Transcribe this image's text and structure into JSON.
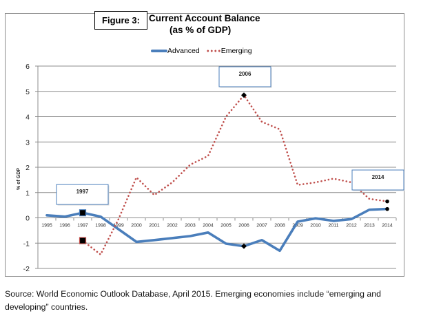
{
  "figure_label": "Figure 3:",
  "source_note": "Source: World Economic Outlook Database, April 2015. Emerging economies include “emerging and developing” countries.",
  "colors": {
    "advanced": "#4a7ebb",
    "emerging": "#c0504d",
    "gridline": "#8c8c8c",
    "annotation_border": "#4a7ebb"
  },
  "chart_data": {
    "type": "line",
    "title": "Current Account Balance",
    "subtitle": "(as % of GDP)",
    "xlabel": "",
    "ylabel": "% of GDP",
    "ylim": [
      -2,
      6
    ],
    "yticks": [
      6,
      5,
      4,
      3,
      2,
      1,
      0,
      -1,
      -2
    ],
    "grid": true,
    "legend_position": "top-center",
    "categories": [
      "1995",
      "1996",
      "1997",
      "1998",
      "1999",
      "2000",
      "2001",
      "2002",
      "2003",
      "2004",
      "2005",
      "2006",
      "2007",
      "2008",
      "2009",
      "2010",
      "2011",
      "2012",
      "2013",
      "2014"
    ],
    "series": [
      {
        "name": "Advanced",
        "style": "solid",
        "values": [
          0.1,
          0.05,
          0.2,
          0.05,
          -0.45,
          -0.95,
          -0.88,
          -0.8,
          -0.72,
          -0.58,
          -1.02,
          -1.12,
          -0.88,
          -1.3,
          -0.15,
          -0.02,
          -0.12,
          -0.05,
          0.32,
          0.35
        ]
      },
      {
        "name": "Emerging",
        "style": "dotted",
        "values": [
          null,
          null,
          -0.9,
          -1.45,
          -0.05,
          1.6,
          0.9,
          1.4,
          2.1,
          2.45,
          4.0,
          4.85,
          3.8,
          3.5,
          1.3,
          1.4,
          1.55,
          1.4,
          0.75,
          0.65
        ]
      }
    ],
    "annotations": [
      {
        "label": "1997",
        "year": "1997"
      },
      {
        "label": "2006",
        "year": "2006"
      },
      {
        "label": "2014",
        "year": "2014"
      }
    ],
    "highlighted_markers": [
      {
        "series": "Advanced",
        "year": "1997",
        "marker": "square"
      },
      {
        "series": "Emerging",
        "year": "1997",
        "marker": "square"
      },
      {
        "series": "Advanced",
        "year": "2006",
        "marker": "diamond"
      },
      {
        "series": "Emerging",
        "year": "2006",
        "marker": "diamond"
      },
      {
        "series": "Advanced",
        "year": "2014",
        "marker": "dot"
      },
      {
        "series": "Emerging",
        "year": "2014",
        "marker": "dot"
      }
    ]
  }
}
